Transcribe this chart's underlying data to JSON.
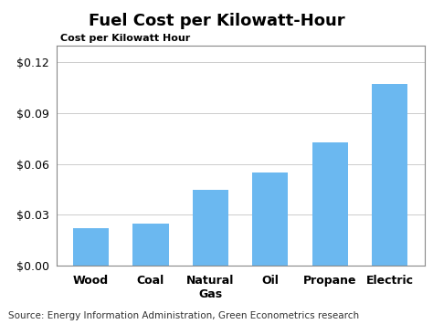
{
  "title": "Fuel Cost per Kilowatt-Hour",
  "ylabel": "Cost per Kilowatt Hour",
  "source": "Source: Energy Information Administration, Green Econometrics research",
  "categories": [
    "Wood",
    "Coal",
    "Natural\nGas",
    "Oil",
    "Propane",
    "Electric"
  ],
  "values": [
    0.022,
    0.025,
    0.045,
    0.055,
    0.073,
    0.107
  ],
  "bar_color": "#6bb8f0",
  "ylim": [
    0,
    0.13
  ],
  "yticks": [
    0.0,
    0.03,
    0.06,
    0.09,
    0.12
  ],
  "background_color": "#ffffff",
  "plot_bg_color": "#ffffff",
  "title_fontsize": 13,
  "ylabel_fontsize": 8,
  "tick_fontsize": 9,
  "source_fontsize": 7.5
}
